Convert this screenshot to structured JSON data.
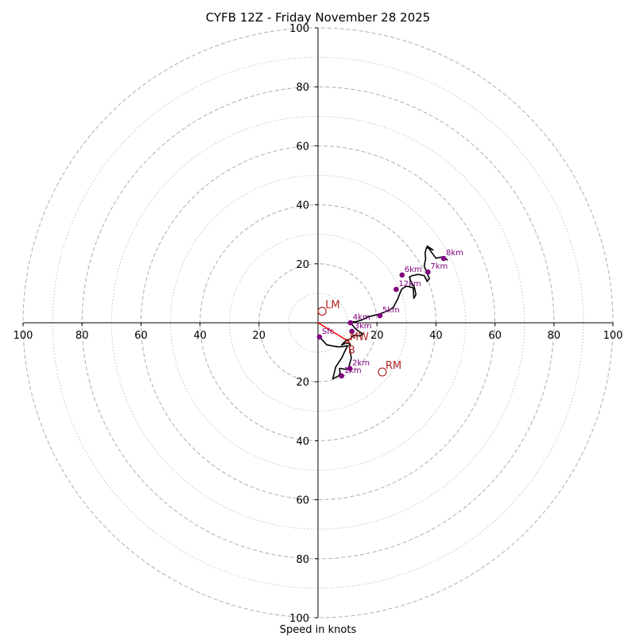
{
  "chart_data": {
    "type": "hodograph",
    "title": "CYFB 12Z - Friday November 28 2025",
    "xlabel": "Speed in knots",
    "range": [
      -100,
      100
    ],
    "rings_dashed": [
      20,
      40,
      60,
      80,
      100
    ],
    "rings_dotted": [
      10,
      30,
      50,
      70,
      90
    ],
    "x_tick_labels": [
      {
        "v": -100,
        "t": "100"
      },
      {
        "v": -80,
        "t": "80"
      },
      {
        "v": -60,
        "t": "60"
      },
      {
        "v": -40,
        "t": "40"
      },
      {
        "v": -20,
        "t": "20"
      },
      {
        "v": 20,
        "t": "20"
      },
      {
        "v": 40,
        "t": "40"
      },
      {
        "v": 60,
        "t": "60"
      },
      {
        "v": 80,
        "t": "80"
      },
      {
        "v": 100,
        "t": "100"
      }
    ],
    "y_tick_labels": [
      {
        "v": 100,
        "t": "100"
      },
      {
        "v": 80,
        "t": "80"
      },
      {
        "v": 60,
        "t": "60"
      },
      {
        "v": 40,
        "t": "40"
      },
      {
        "v": 20,
        "t": "20"
      },
      {
        "v": -20,
        "t": "20"
      },
      {
        "v": -40,
        "t": "40"
      },
      {
        "v": -60,
        "t": "60"
      },
      {
        "v": -80,
        "t": "80"
      },
      {
        "v": -100,
        "t": "100"
      }
    ],
    "trace_u": [
      0.5,
      3,
      7,
      10,
      8,
      6,
      5,
      6,
      7,
      7.5,
      7.3,
      8,
      9,
      10.3,
      11.3,
      10.8,
      10.5,
      11,
      10.5,
      9.5,
      8,
      9.5,
      11,
      12,
      13.5,
      14.5,
      15,
      13.5,
      12.5,
      11.5,
      11.2,
      13,
      15,
      17,
      19,
      21,
      24,
      25.5,
      27,
      28,
      28.5,
      30,
      31,
      32.3,
      32.5,
      33.2,
      32.7,
      31.5,
      31,
      32,
      34,
      36,
      37,
      37.8,
      36,
      36.5,
      36.3,
      36.8,
      39,
      37,
      38.8,
      40,
      42.5,
      44
    ],
    "trace_v": [
      -4.8,
      -7.5,
      -8.2,
      -7.8,
      -12,
      -15,
      -19,
      -18.5,
      -18,
      -17,
      -15.5,
      -15.5,
      -15.8,
      -15.5,
      -12,
      -9,
      -7.8,
      -7.5,
      -7.1,
      -6.9,
      -7.5,
      -6,
      -5.5,
      -4.2,
      -4.4,
      -4.5,
      -3.6,
      -2.7,
      -1.8,
      -0.6,
      0.3,
      0.4,
      1,
      2,
      2.5,
      3,
      4.2,
      5.2,
      8,
      10.6,
      11.5,
      12.4,
      12.2,
      11.8,
      8.3,
      9.6,
      12,
      14,
      15.5,
      16,
      16.4,
      16,
      14,
      15,
      19.2,
      21.8,
      23.7,
      25.5,
      24.7,
      26,
      23.5,
      21.9,
      22.4,
      21.2
    ],
    "height_points": [
      {
        "label": "Sfc",
        "u": 0.5,
        "v": -4.8
      },
      {
        "label": "1km",
        "u": 8,
        "v": -18
      },
      {
        "label": "2km",
        "u": 10.8,
        "v": -15.5
      },
      {
        "label": "3km",
        "u": 11.5,
        "v": -2.9
      },
      {
        "label": "4km",
        "u": 11,
        "v": 0
      },
      {
        "label": "5km",
        "u": 21,
        "v": 2.4
      },
      {
        "label": "6km",
        "u": 28.5,
        "v": 16.2
      },
      {
        "label": "7km",
        "u": 37.3,
        "v": 17.2
      },
      {
        "label": "8km",
        "u": 42.6,
        "v": 21.8
      },
      {
        "label": "12km",
        "u": 26.5,
        "v": 11.3
      }
    ],
    "motion_markers": [
      {
        "label": "LM",
        "u": 1.4,
        "v": 3.9
      },
      {
        "label": "RM",
        "u": 21.8,
        "v": -16.7
      },
      {
        "label": "MW",
        "u": 10.2,
        "v": -6.2
      },
      {
        "label": "B",
        "u": 10.2,
        "v": -7.4
      }
    ],
    "mean_wind_vector": {
      "u": 10.2,
      "v": -6.2
    },
    "colors": {
      "grid": "#b4b4b4",
      "trace": "#000000",
      "points": "#800080",
      "motion": "#b22222",
      "vector": "#ff0000"
    }
  }
}
